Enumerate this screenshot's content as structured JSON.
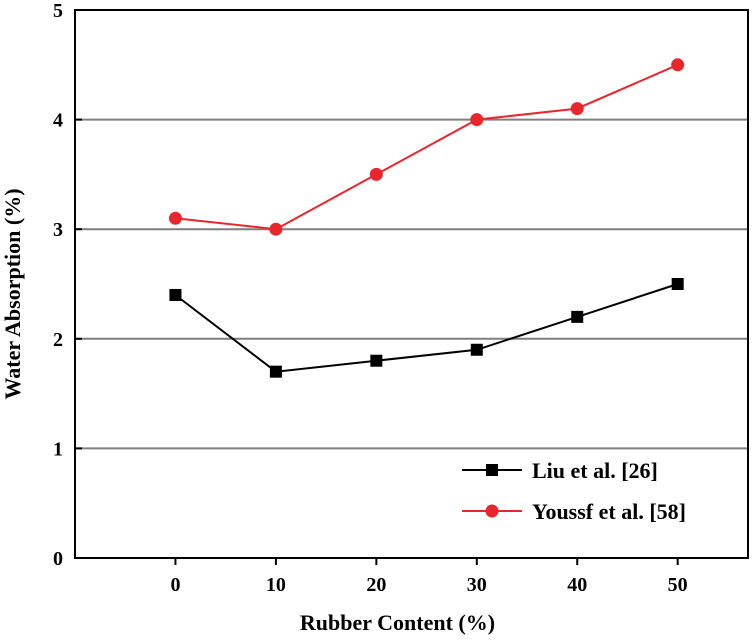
{
  "chart_data": {
    "type": "line",
    "x": [
      0,
      10,
      20,
      30,
      40,
      50
    ],
    "x_tick_labels": [
      "0",
      "10",
      "20",
      "30",
      "40",
      "50"
    ],
    "y_tick_labels": [
      "0",
      "1",
      "2",
      "3",
      "4",
      "5"
    ],
    "xlabel": "Rubber Content (%)",
    "ylabel": "Water Absorption (%)",
    "xlim": [
      -10,
      57
    ],
    "ylim": [
      0,
      5
    ],
    "grid": "horizontal",
    "legend_position": "bottom-right",
    "series": [
      {
        "name": "Liu et al. [26]",
        "marker": "square",
        "color": "#000000",
        "values": [
          2.4,
          1.7,
          1.8,
          1.9,
          2.2,
          2.5
        ]
      },
      {
        "name": "Youssf et al. [58]",
        "marker": "circle",
        "color": "#e8262b",
        "values": [
          3.1,
          3.0,
          3.5,
          4.0,
          4.1,
          4.5
        ]
      }
    ]
  }
}
